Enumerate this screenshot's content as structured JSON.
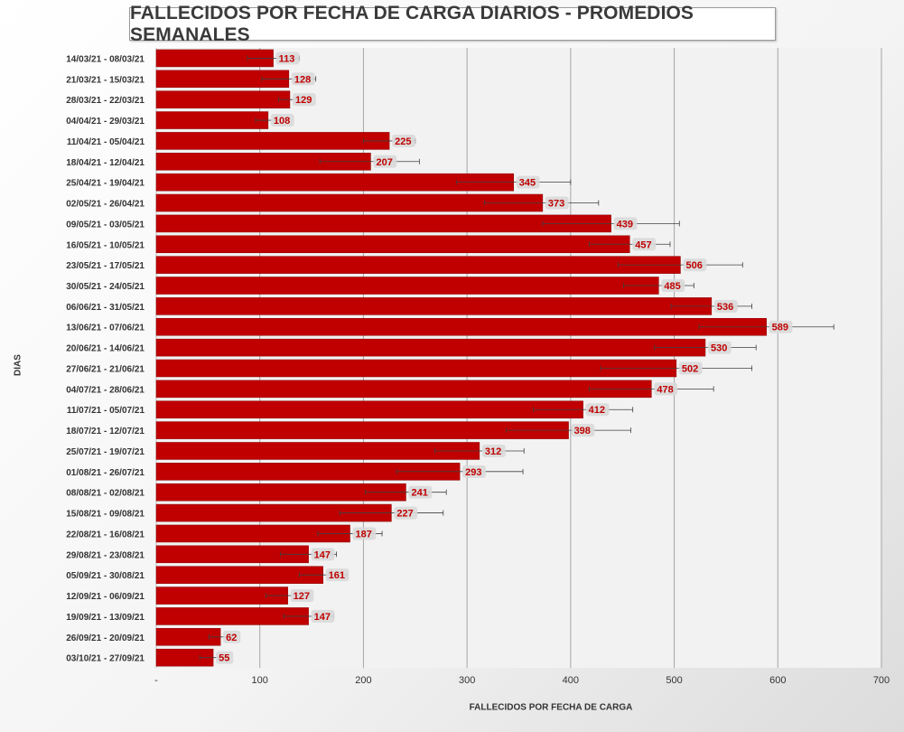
{
  "chart_data": {
    "type": "bar",
    "orientation": "horizontal",
    "title": "FALLECIDOS POR FECHA DE CARGA DIARIOS - PROMEDIOS SEMANALES",
    "xlabel": "FALLECIDOS POR FECHA DE CARGA",
    "ylabel": "DIAS",
    "xlim": [
      0,
      700
    ],
    "x_ticks": [
      "-",
      "100",
      "200",
      "300",
      "400",
      "500",
      "600",
      "700"
    ],
    "grid": "vertical",
    "legend": "none",
    "bar_color": "#c00000",
    "categories": [
      "14/03/21 - 08/03/21",
      "21/03/21 - 15/03/21",
      "28/03/21 - 22/03/21",
      "04/04/21 - 29/03/21",
      "11/04/21 - 05/04/21",
      "18/04/21 - 12/04/21",
      "25/04/21 - 19/04/21",
      "02/05/21 - 26/04/21",
      "09/05/21 - 03/05/21",
      "16/05/21 - 10/05/21",
      "23/05/21 - 17/05/21",
      "30/05/21 - 24/05/21",
      "06/06/21 - 31/05/21",
      "13/06/21 - 07/06/21",
      "20/06/21 - 14/06/21",
      "27/06/21 - 21/06/21",
      "04/07/21 - 28/06/21",
      "11/07/21 - 05/07/21",
      "18/07/21 - 12/07/21",
      "25/07/21 - 19/07/21",
      "01/08/21 - 26/07/21",
      "08/08/21 - 02/08/21",
      "15/08/21 - 09/08/21",
      "22/08/21 - 16/08/21",
      "29/08/21 - 23/08/21",
      "05/09/21 - 30/08/21",
      "12/09/21 - 06/09/21",
      "19/09/21 - 13/09/21",
      "26/09/21 - 20/09/21",
      "03/10/21 - 27/09/21"
    ],
    "values": [
      113,
      128,
      129,
      108,
      225,
      207,
      345,
      373,
      439,
      457,
      506,
      485,
      536,
      589,
      530,
      502,
      478,
      412,
      398,
      312,
      293,
      241,
      227,
      187,
      147,
      161,
      127,
      147,
      62,
      55
    ],
    "error_low": [
      88,
      102,
      118,
      96,
      200,
      158,
      290,
      317,
      373,
      418,
      446,
      451,
      497,
      524,
      481,
      429,
      418,
      364,
      338,
      269,
      232,
      202,
      177,
      156,
      120,
      138,
      106,
      123,
      51,
      42
    ],
    "error_high": [
      138,
      154,
      140,
      120,
      250,
      254,
      400,
      427,
      505,
      496,
      566,
      519,
      575,
      654,
      579,
      575,
      538,
      460,
      458,
      355,
      354,
      280,
      277,
      218,
      174,
      184,
      148,
      171,
      73,
      68
    ]
  }
}
